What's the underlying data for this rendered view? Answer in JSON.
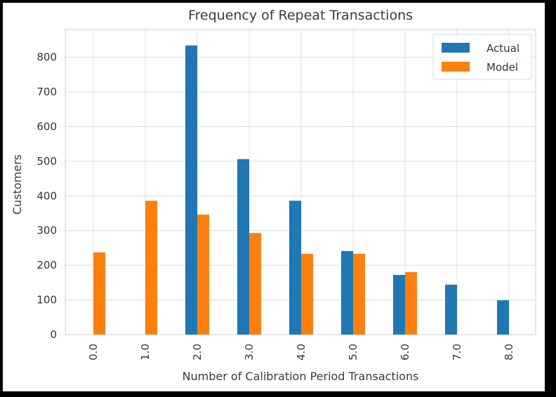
{
  "chart_data": {
    "type": "bar",
    "title": "Frequency of Repeat Transactions",
    "xlabel": "Number of Calibration Period Transactions",
    "ylabel": "Customers",
    "categories": [
      "0.0",
      "1.0",
      "2.0",
      "3.0",
      "4.0",
      "5.0",
      "6.0",
      "7.0",
      "8.0"
    ],
    "series": [
      {
        "name": "Actual",
        "color": "#1f77b4",
        "values": [
          0,
          0,
          834,
          506,
          386,
          241,
          172,
          144,
          99
        ]
      },
      {
        "name": "Model",
        "color": "#ff7f0e",
        "values": [
          237,
          386,
          346,
          293,
          233,
          233,
          180,
          0,
          0
        ]
      }
    ],
    "ylim": [
      0,
      880
    ],
    "yticks": [
      0,
      100,
      200,
      300,
      400,
      500,
      600,
      700,
      800
    ],
    "grid": true,
    "legend_position": "top-right"
  }
}
